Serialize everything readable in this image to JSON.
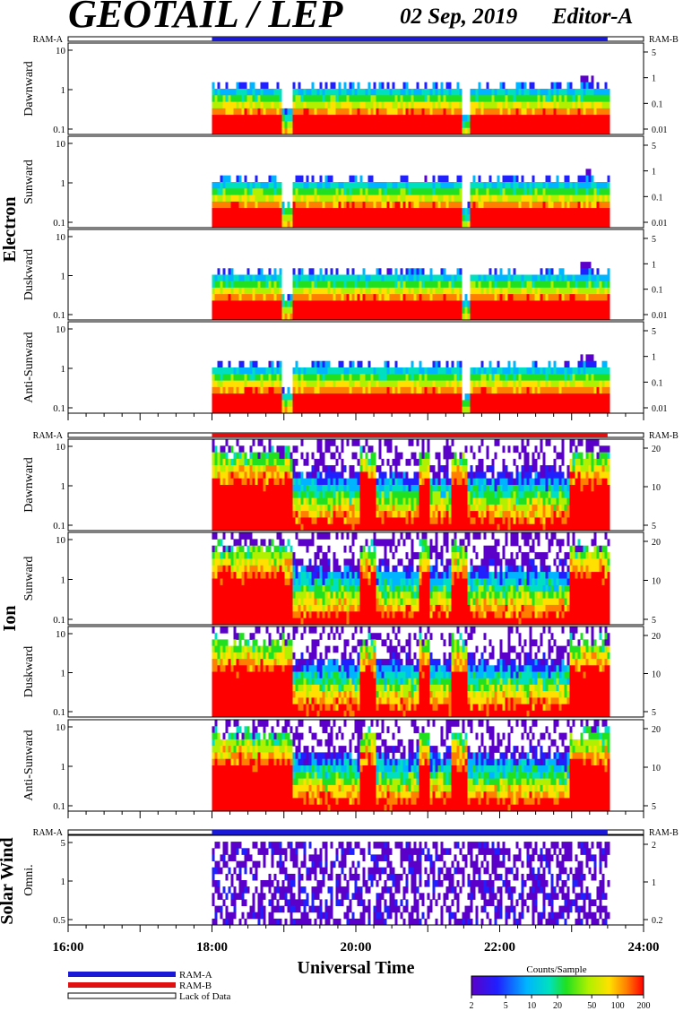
{
  "header": {
    "title": "GEOTAIL / LEP",
    "date": "02 Sep, 2019",
    "editor": "Editor-A"
  },
  "colors": {
    "ram_a": "#1a1ad6",
    "ram_b": "#e01010",
    "lack": "#ffffff",
    "colormap": [
      "#5a00c8",
      "#2020ff",
      "#00b4ff",
      "#00e0c0",
      "#20e020",
      "#b0f000",
      "#ffe000",
      "#ff8000",
      "#ff0000"
    ]
  },
  "ram_labels": {
    "left": "RAM-A",
    "right": "RAM-B"
  },
  "sections": [
    {
      "name": "Electron",
      "panels": [
        {
          "label": "Dawnward",
          "left_ticks": [
            "10",
            "1",
            "0.1"
          ],
          "right_ticks": [
            "5",
            "1",
            "0.1",
            "0.01"
          ]
        },
        {
          "label": "Sunward",
          "left_ticks": [
            "10",
            "1",
            "0.1"
          ],
          "right_ticks": [
            "5",
            "1",
            "0.1",
            "0.01"
          ]
        },
        {
          "label": "Duskward",
          "left_ticks": [
            "10",
            "1",
            "0.1"
          ],
          "right_ticks": [
            "5",
            "1",
            "0.1",
            "0.01"
          ]
        },
        {
          "label": "Anti-Sunward",
          "left_ticks": [
            "10",
            "1",
            "0.1"
          ],
          "right_ticks": [
            "5",
            "1",
            "0.1",
            "0.01"
          ]
        }
      ]
    },
    {
      "name": "Ion",
      "panels": [
        {
          "label": "Dawnward",
          "left_ticks": [
            "10",
            "1",
            "0.1"
          ],
          "right_ticks": [
            "20",
            "10",
            "5"
          ]
        },
        {
          "label": "Sunward",
          "left_ticks": [
            "10",
            "1",
            "0.1"
          ],
          "right_ticks": [
            "20",
            "10",
            "5"
          ]
        },
        {
          "label": "Duskward",
          "left_ticks": [
            "10",
            "1",
            "0.1"
          ],
          "right_ticks": [
            "20",
            "10",
            "5"
          ]
        },
        {
          "label": "Anti-Sunward",
          "left_ticks": [
            "10",
            "1",
            "0.1"
          ],
          "right_ticks": [
            "20",
            "10",
            "5"
          ]
        }
      ]
    },
    {
      "name": "Solar Wind",
      "panels": [
        {
          "label": "Omni.",
          "left_ticks": [
            "5",
            "1",
            "0.5"
          ],
          "right_ticks": [
            "2",
            "1",
            "0.2"
          ]
        }
      ]
    }
  ],
  "x_axis": {
    "label": "Universal Time",
    "ticks": [
      "16:00",
      "18:00",
      "20:00",
      "22:00",
      "24:00"
    ]
  },
  "legend": {
    "ram_a": "RAM-A",
    "ram_b": "RAM-B",
    "lack": "Lack of Data"
  },
  "colorbar": {
    "title": "Counts/Sample",
    "ticks": [
      "2",
      "5",
      "10",
      "20",
      "50",
      "100",
      "200"
    ]
  },
  "chart_data": {
    "type": "heatmap",
    "title": "GEOTAIL / LEP",
    "xlabel": "Universal Time",
    "x_range": [
      "16:00",
      "24:00"
    ],
    "data_coverage": [
      "18:00",
      "23:30"
    ],
    "y_scale": "log",
    "colorbar_range": [
      2,
      200
    ],
    "panels": [
      {
        "section": "Electron",
        "label": "Dawnward",
        "ram_timeline": [
          {
            "from": "18:00",
            "to": "23:30",
            "mode": "RAM-A"
          }
        ]
      },
      {
        "section": "Electron",
        "label": "Sunward"
      },
      {
        "section": "Electron",
        "label": "Duskward"
      },
      {
        "section": "Electron",
        "label": "Anti-Sunward"
      },
      {
        "section": "Ion",
        "label": "Dawnward",
        "ram_timeline": [
          {
            "from": "18:00",
            "to": "23:30",
            "mode": "RAM-B"
          }
        ]
      },
      {
        "section": "Ion",
        "label": "Sunward"
      },
      {
        "section": "Ion",
        "label": "Duskward"
      },
      {
        "section": "Ion",
        "label": "Anti-Sunward"
      },
      {
        "section": "Solar Wind",
        "label": "Omni.",
        "ram_timeline": [
          {
            "from": "18:00",
            "to": "23:30",
            "mode": "RAM-A"
          }
        ]
      }
    ]
  }
}
